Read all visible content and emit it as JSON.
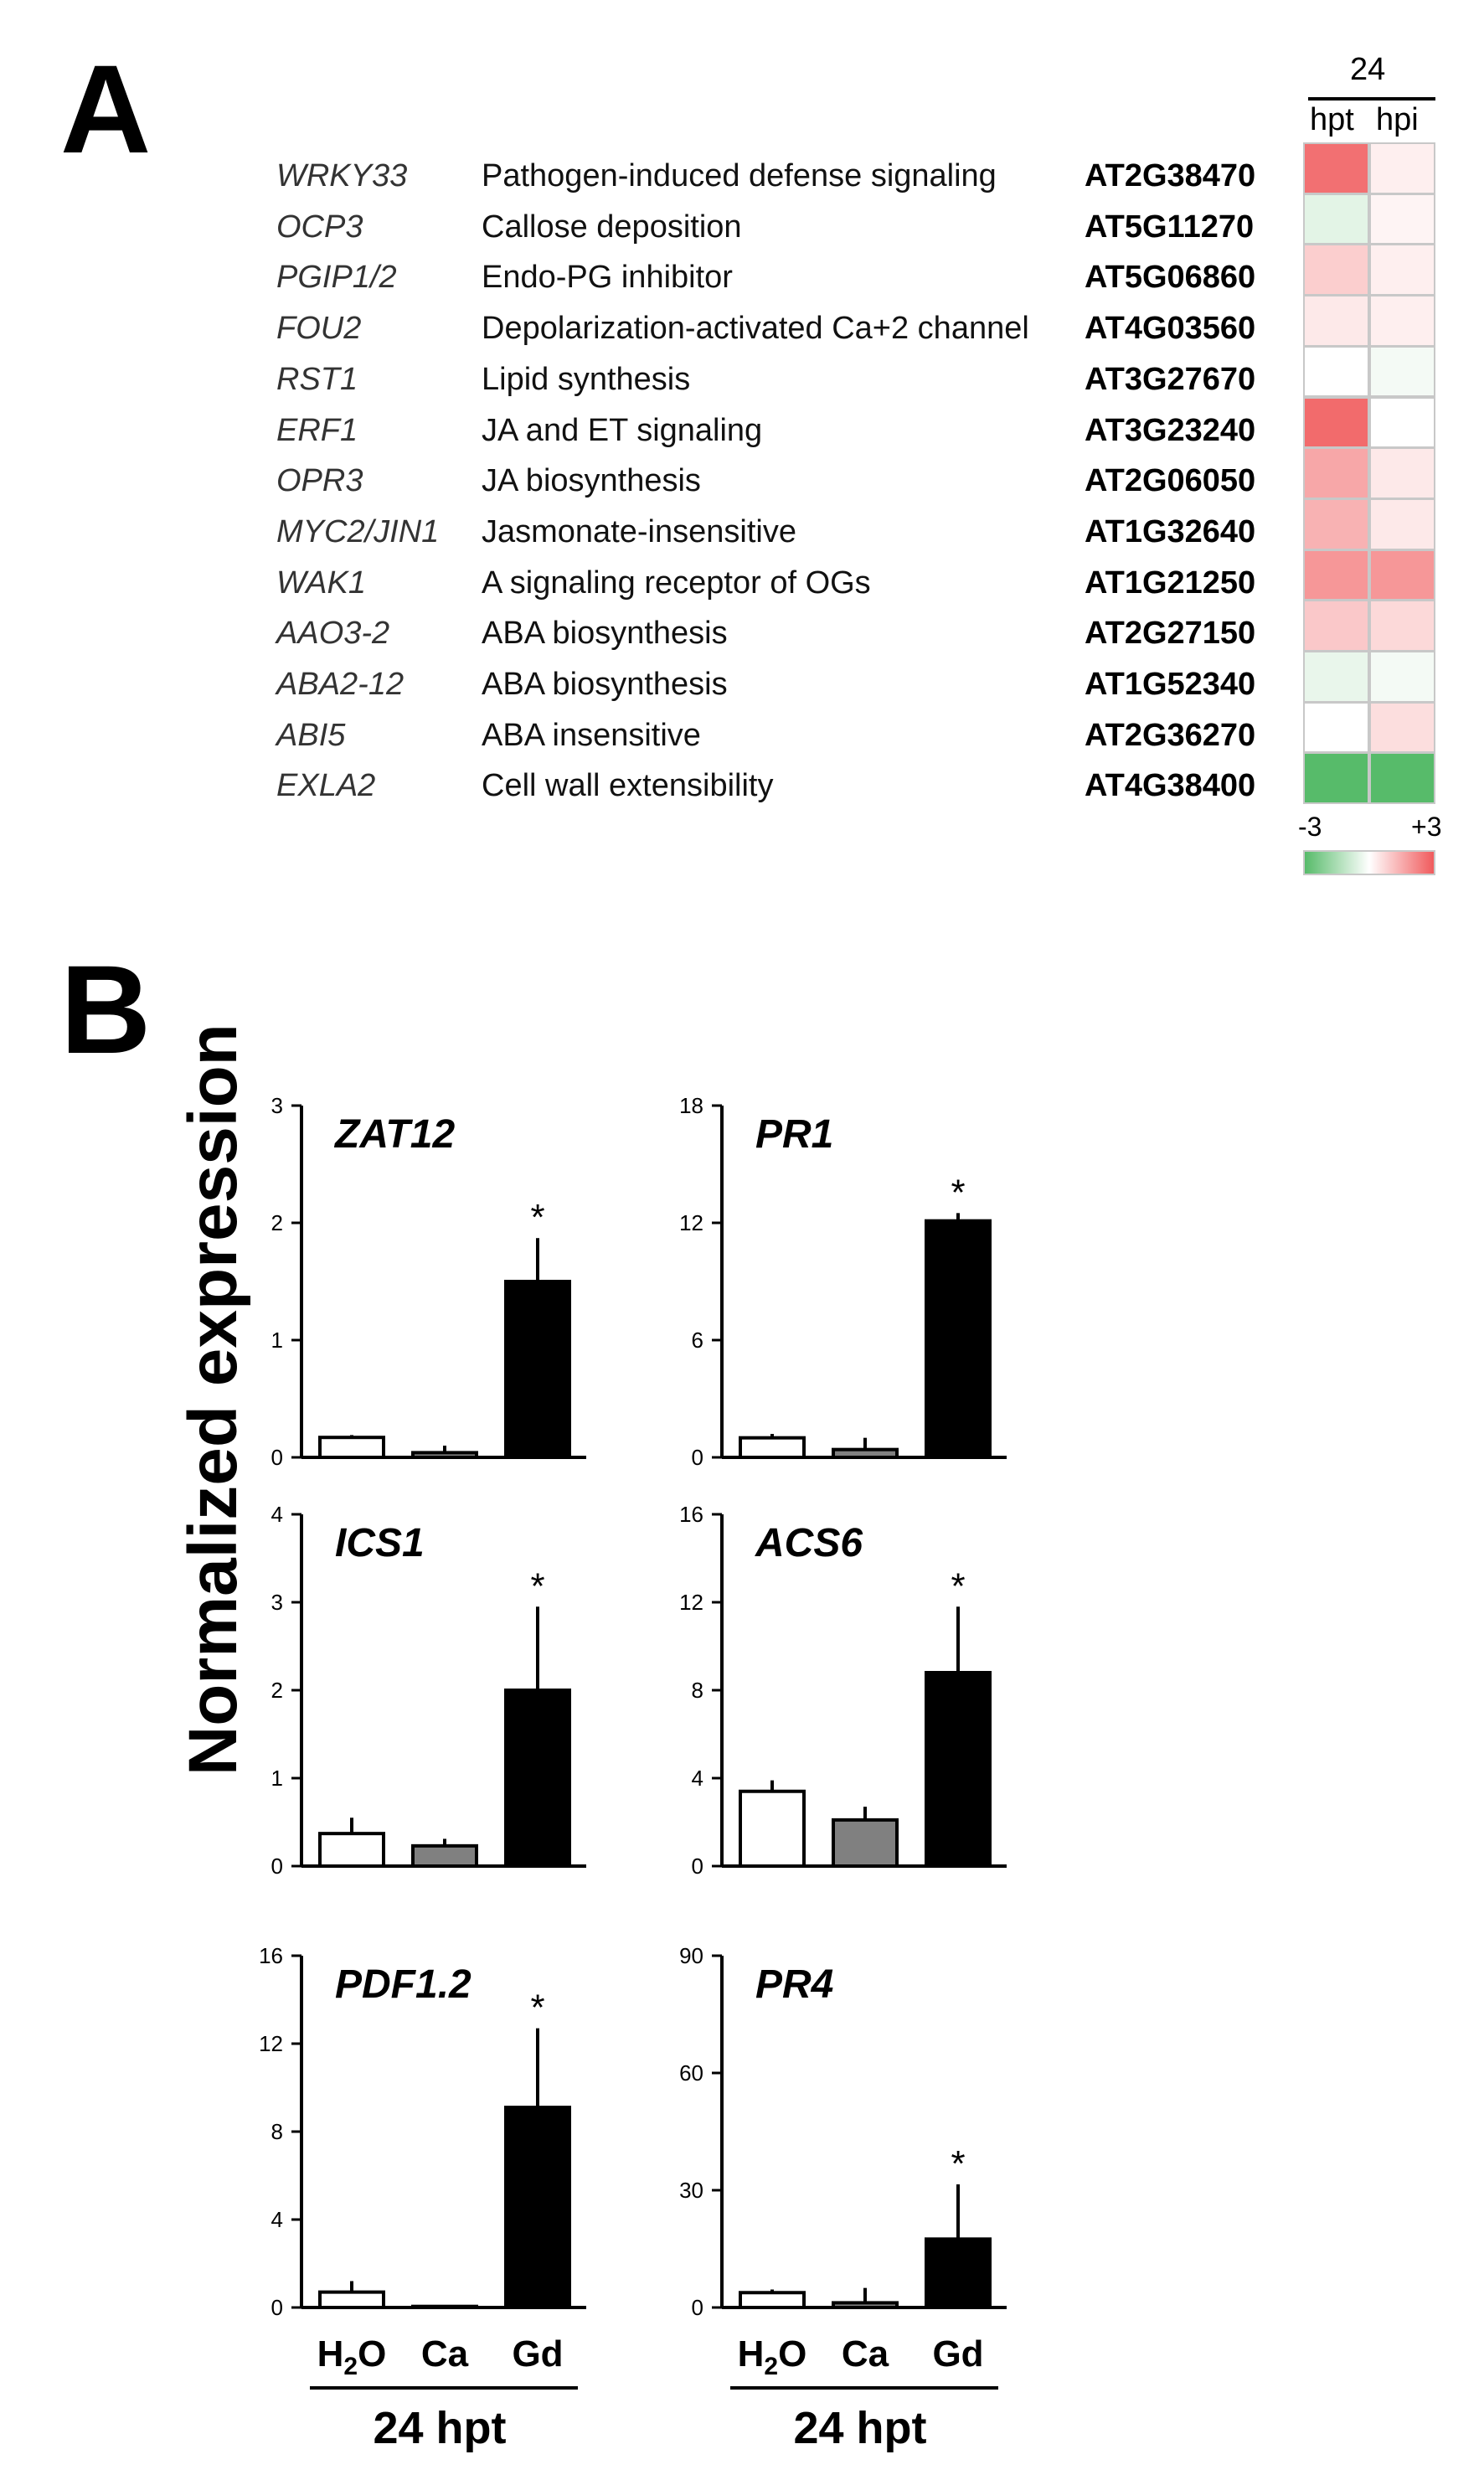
{
  "panel_labels": {
    "a": "A",
    "b": "B"
  },
  "heatmap": {
    "timepoint": "24",
    "columns": [
      "hpt",
      "hpi"
    ],
    "scale_min_label": "-3",
    "scale_max_label": "+3",
    "colors": {
      "low": "#57bb6a",
      "mid": "#ffffff",
      "high": "#f05a5c",
      "grid": "#c8c8c8"
    },
    "genes": [
      {
        "name": "WRKY33",
        "description": "Pathogen-induced defense signaling",
        "id": "AT2G38470",
        "hpt": 2.6,
        "hpi": 0.3
      },
      {
        "name": "OCP3",
        "description": "Callose deposition",
        "id": "AT5G11270",
        "hpt": -0.5,
        "hpi": 0.2
      },
      {
        "name": "PGIP1/2",
        "description": "Endo-PG inhibitor",
        "id": "AT5G06860",
        "hpt": 0.9,
        "hpi": 0.3
      },
      {
        "name": "FOU2",
        "description": "Depolarization-activated Ca+2 channel",
        "id": "AT4G03560",
        "hpt": 0.4,
        "hpi": 0.3
      },
      {
        "name": "RST1",
        "description": "Lipid synthesis",
        "id": "AT3G27670",
        "hpt": 0.0,
        "hpi": -0.2
      },
      {
        "name": "ERF1",
        "description": "JA and ET signaling",
        "id": "AT3G23240",
        "hpt": 2.7,
        "hpi": 0.0
      },
      {
        "name": "OPR3",
        "description": "JA biosynthesis",
        "id": "AT2G06050",
        "hpt": 1.6,
        "hpi": 0.4
      },
      {
        "name": "MYC2/JIN1",
        "description": "Jasmonate-insensitive",
        "id": "AT1G32640",
        "hpt": 1.4,
        "hpi": 0.4
      },
      {
        "name": "WAK1",
        "description": "A signaling receptor of OGs",
        "id": "AT1G21250",
        "hpt": 1.9,
        "hpi": 1.9
      },
      {
        "name": "AAO3-2",
        "description": "ABA biosynthesis",
        "id": "AT2G27150",
        "hpt": 1.0,
        "hpi": 0.7
      },
      {
        "name": "ABA2-12",
        "description": "ABA biosynthesis",
        "id": "AT1G52340",
        "hpt": -0.4,
        "hpi": -0.2
      },
      {
        "name": "ABI5",
        "description": "ABA insensitive",
        "id": "AT2G36270",
        "hpt": 0.0,
        "hpi": 0.6
      },
      {
        "name": "EXLA2",
        "description": "Cell wall extensibility",
        "id": "AT4G38400",
        "hpt": -3.0,
        "hpi": -3.0
      }
    ]
  },
  "bar_panel": {
    "ylabel": "Normalized expression",
    "xlabel": "24 hpt",
    "categories": [
      "H2O",
      "Ca",
      "Gd"
    ],
    "fills": [
      "#ffffff",
      "#808080",
      "#000000"
    ]
  },
  "chart_data": [
    {
      "type": "bar",
      "title": "ZAT12",
      "categories": [
        "H2O",
        "Ca",
        "Gd"
      ],
      "values": [
        0.17,
        0.04,
        1.5
      ],
      "errors": [
        0.02,
        0.06,
        0.37
      ],
      "ylim": [
        0,
        3
      ],
      "yticks": [
        0,
        1,
        2,
        3
      ],
      "significance": [
        "",
        "",
        "*"
      ]
    },
    {
      "type": "bar",
      "title": "PR1",
      "categories": [
        "H2O",
        "Ca",
        "Gd"
      ],
      "values": [
        1.0,
        0.4,
        12.1
      ],
      "errors": [
        0.2,
        0.6,
        0.4
      ],
      "ylim": [
        0,
        18
      ],
      "yticks": [
        0,
        6,
        12,
        18
      ],
      "significance": [
        "",
        "",
        "*"
      ]
    },
    {
      "type": "bar",
      "title": "ICS1",
      "categories": [
        "H2O",
        "Ca",
        "Gd"
      ],
      "values": [
        0.37,
        0.23,
        2.0
      ],
      "errors": [
        0.18,
        0.08,
        0.95
      ],
      "ylim": [
        0,
        4
      ],
      "yticks": [
        0,
        1,
        2,
        3,
        4
      ],
      "significance": [
        "",
        "",
        "*"
      ]
    },
    {
      "type": "bar",
      "title": "ACS6",
      "categories": [
        "H2O",
        "Ca",
        "Gd"
      ],
      "values": [
        3.4,
        2.1,
        8.8
      ],
      "errors": [
        0.5,
        0.6,
        3.0
      ],
      "ylim": [
        0,
        16
      ],
      "yticks": [
        0,
        4,
        8,
        12,
        16
      ],
      "significance": [
        "",
        "",
        "*"
      ]
    },
    {
      "type": "bar",
      "title": "PDF1.2",
      "categories": [
        "H2O",
        "Ca",
        "Gd"
      ],
      "values": [
        0.7,
        0.05,
        9.1
      ],
      "errors": [
        0.5,
        0.05,
        3.6
      ],
      "ylim": [
        0,
        16
      ],
      "yticks": [
        0,
        4,
        8,
        12,
        16
      ],
      "significance": [
        "",
        "",
        "*"
      ]
    },
    {
      "type": "bar",
      "title": "PR4",
      "categories": [
        "H2O",
        "Ca",
        "Gd"
      ],
      "values": [
        3.8,
        1.2,
        17.5
      ],
      "errors": [
        0.8,
        3.8,
        14.0
      ],
      "ylim": [
        0,
        90
      ],
      "yticks": [
        0,
        30,
        60,
        90
      ],
      "significance": [
        "",
        "",
        "*"
      ]
    }
  ]
}
